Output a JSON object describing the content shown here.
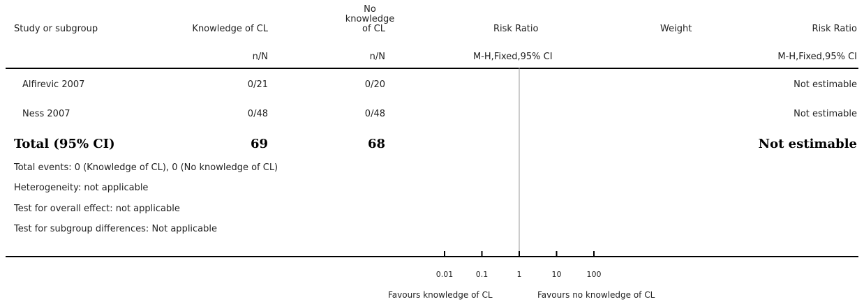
{
  "header": {
    "study_col": "Study or subgroup",
    "group1_col": "Knowledge of CL",
    "group2_col_line1": "No",
    "group2_col_line2": "knowledge",
    "group2_col_line3": "of CL",
    "rr_col": "Risk Ratio",
    "weight_col": "Weight",
    "rr2_col": "Risk Ratio",
    "group1_sub": "n/N",
    "group2_sub": "n/N",
    "rr_sub": "M-H,Fixed,95% CI",
    "rr2_sub": "M-H,Fixed,95% CI"
  },
  "rows": [
    {
      "study": "Alfirevic 2007",
      "g1": "0/21",
      "g2": "0/20",
      "result": "Not estimable"
    },
    {
      "study": "Ness 2007",
      "g1": "0/48",
      "g2": "0/48",
      "result": "Not estimable"
    }
  ],
  "total": {
    "label": "Total (95% CI)",
    "g1": "69",
    "g2": "68",
    "result": "Not estimable"
  },
  "footnotes": [
    "Total events: 0 (Knowledge of CL), 0 (No knowledge of CL)",
    "Heterogeneity: not applicable",
    "Test for overall effect: not applicable",
    "Test for subgroup differences: Not applicable"
  ],
  "chart_data": {
    "type": "forest",
    "scale": "log",
    "xlim": [
      0.01,
      100
    ],
    "reference_line": 1,
    "ticks": [
      0.01,
      0.1,
      1,
      10,
      100
    ],
    "tick_labels": [
      "0.01",
      "0.1",
      "1",
      "10",
      "100"
    ],
    "favours_left": "Favours knowledge of CL",
    "favours_right": "Favours no knowledge of CL",
    "studies": [
      {
        "name": "Alfirevic 2007",
        "estimate": null
      },
      {
        "name": "Ness 2007",
        "estimate": null
      }
    ]
  }
}
